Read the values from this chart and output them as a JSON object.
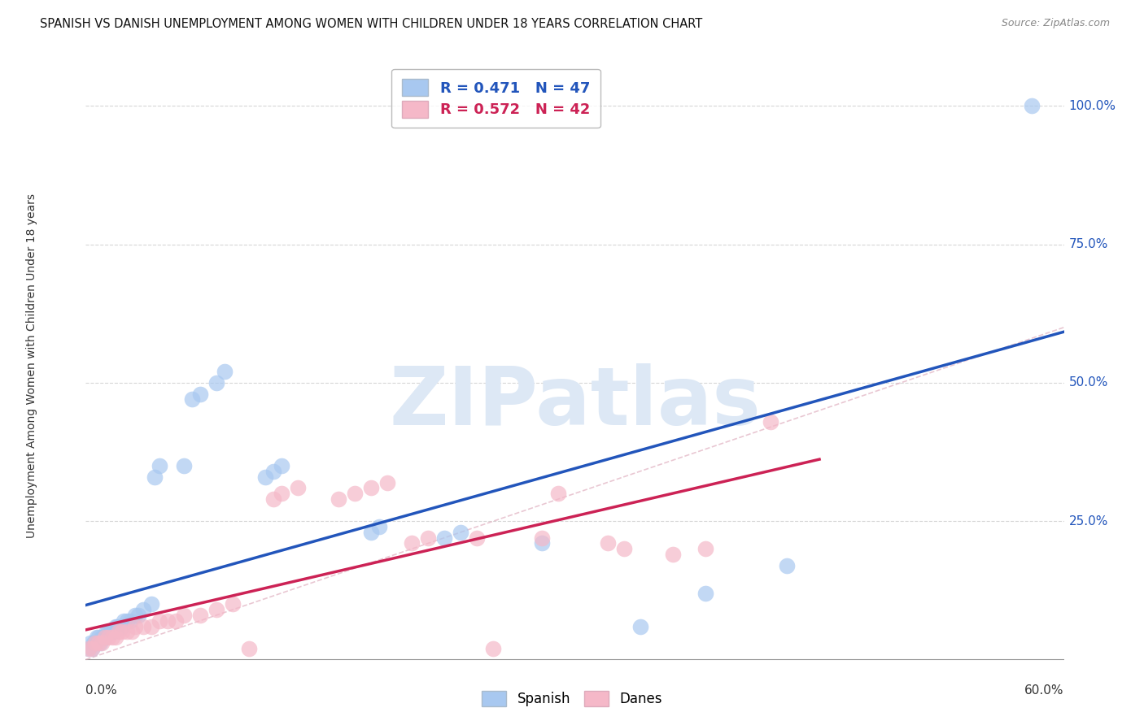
{
  "title": "SPANISH VS DANISH UNEMPLOYMENT AMONG WOMEN WITH CHILDREN UNDER 18 YEARS CORRELATION CHART",
  "source": "Source: ZipAtlas.com",
  "ylabel": "Unemployment Among Women with Children Under 18 years",
  "ytick_labels": [
    "25.0%",
    "50.0%",
    "75.0%",
    "100.0%"
  ],
  "ytick_values": [
    0.25,
    0.5,
    0.75,
    1.0
  ],
  "xlim": [
    0.0,
    0.6
  ],
  "ylim": [
    -0.02,
    1.08
  ],
  "legend_spanish": "R = 0.471   N = 47",
  "legend_danes": "R = 0.572   N = 42",
  "spanish_color": "#a8c8f0",
  "danes_color": "#f5b8c8",
  "spanish_line_color": "#2255bb",
  "danes_line_color": "#cc2255",
  "background_color": "#ffffff",
  "watermark": "ZIPatlas",
  "watermark_color": "#dde8f5",
  "grid_color": "#cccccc",
  "spanish_x": [
    0.002,
    0.003,
    0.004,
    0.005,
    0.006,
    0.007,
    0.008,
    0.009,
    0.01,
    0.011,
    0.012,
    0.013,
    0.014,
    0.015,
    0.016,
    0.017,
    0.018,
    0.019,
    0.02,
    0.021,
    0.022,
    0.023,
    0.025,
    0.027,
    0.03,
    0.032,
    0.035,
    0.04,
    0.042,
    0.045,
    0.06,
    0.065,
    0.07,
    0.08,
    0.085,
    0.11,
    0.115,
    0.12,
    0.175,
    0.18,
    0.22,
    0.23,
    0.28,
    0.34,
    0.38,
    0.43,
    0.58
  ],
  "spanish_y": [
    0.02,
    0.03,
    0.02,
    0.03,
    0.03,
    0.04,
    0.04,
    0.03,
    0.04,
    0.04,
    0.04,
    0.05,
    0.05,
    0.05,
    0.05,
    0.05,
    0.06,
    0.06,
    0.06,
    0.06,
    0.06,
    0.07,
    0.07,
    0.07,
    0.08,
    0.08,
    0.09,
    0.1,
    0.33,
    0.35,
    0.35,
    0.47,
    0.48,
    0.5,
    0.52,
    0.33,
    0.34,
    0.35,
    0.23,
    0.24,
    0.22,
    0.23,
    0.21,
    0.06,
    0.12,
    0.17,
    1.0
  ],
  "danes_x": [
    0.002,
    0.004,
    0.006,
    0.008,
    0.01,
    0.012,
    0.014,
    0.016,
    0.018,
    0.02,
    0.022,
    0.025,
    0.028,
    0.03,
    0.035,
    0.04,
    0.045,
    0.05,
    0.055,
    0.06,
    0.07,
    0.08,
    0.09,
    0.1,
    0.115,
    0.12,
    0.13,
    0.155,
    0.165,
    0.175,
    0.185,
    0.2,
    0.21,
    0.24,
    0.25,
    0.28,
    0.29,
    0.32,
    0.33,
    0.36,
    0.38,
    0.42
  ],
  "danes_y": [
    0.02,
    0.02,
    0.03,
    0.03,
    0.03,
    0.04,
    0.04,
    0.04,
    0.04,
    0.05,
    0.05,
    0.05,
    0.05,
    0.06,
    0.06,
    0.06,
    0.07,
    0.07,
    0.07,
    0.08,
    0.08,
    0.09,
    0.1,
    0.02,
    0.29,
    0.3,
    0.31,
    0.29,
    0.3,
    0.31,
    0.32,
    0.21,
    0.22,
    0.22,
    0.02,
    0.22,
    0.3,
    0.21,
    0.2,
    0.19,
    0.2,
    0.43
  ],
  "title_fontsize": 10.5,
  "source_fontsize": 9
}
